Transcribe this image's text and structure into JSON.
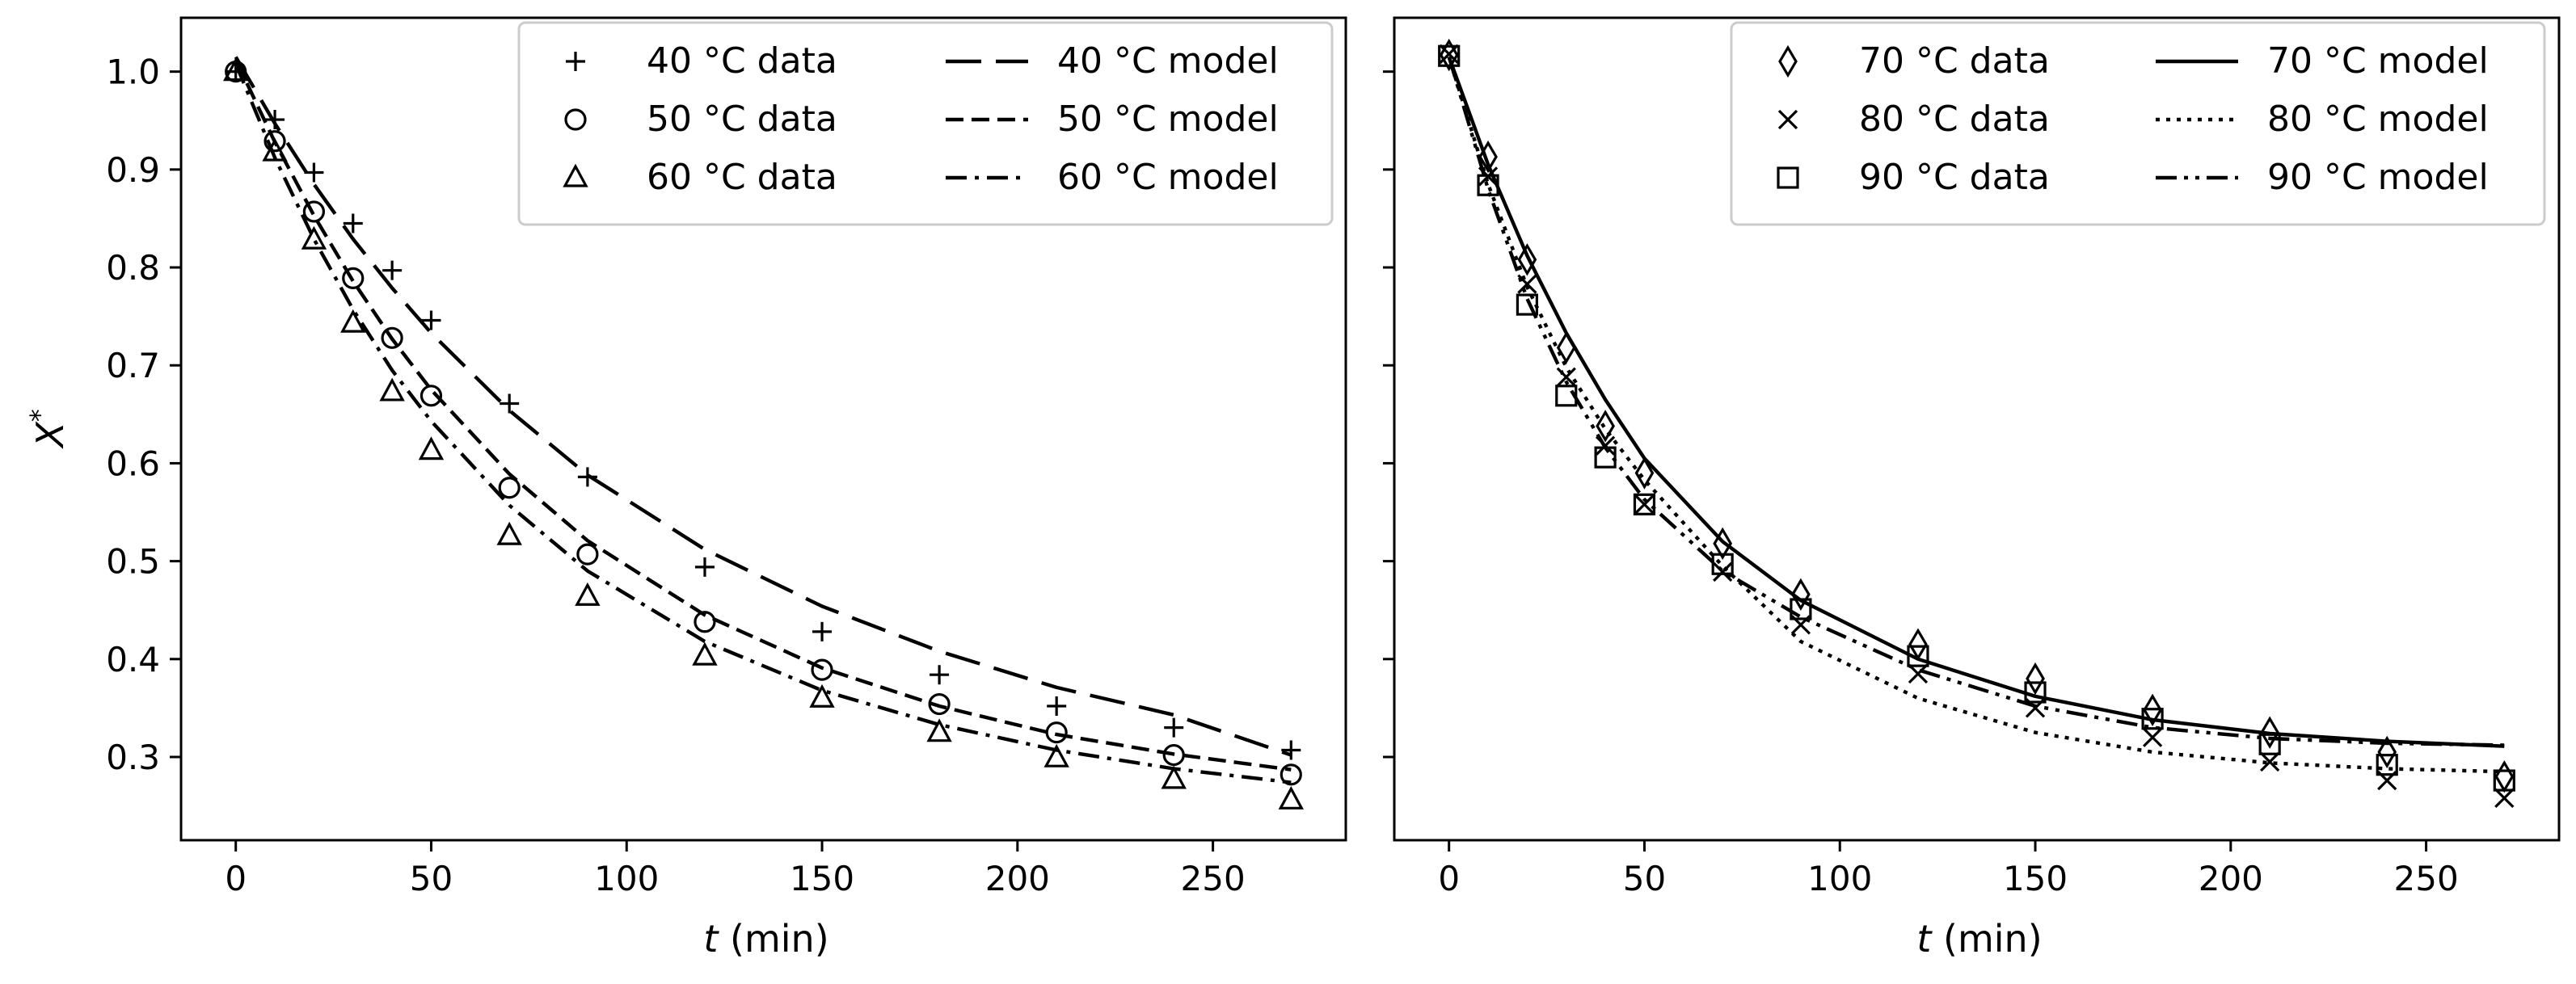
{
  "chart_data": [
    {
      "type": "scatter",
      "x": [
        0,
        10,
        20,
        30,
        40,
        50,
        70,
        90,
        120,
        150,
        180,
        210,
        240,
        270
      ],
      "xlabel_italic": "t",
      "xlabel_rest": " (min)",
      "ylabel": "X*",
      "xlim": [
        -14,
        284
      ],
      "ylim": [
        0.215,
        1.055
      ],
      "xticks": [
        0,
        50,
        100,
        150,
        200,
        250
      ],
      "yticks": [
        1.0,
        0.9,
        0.8,
        0.7,
        0.6,
        0.5,
        0.4,
        0.3
      ],
      "ytick_labels": [
        "1.0",
        "0.9",
        "0.8",
        "0.7",
        "0.6",
        "0.5",
        "0.4",
        "0.3"
      ],
      "legend_position": "top-right",
      "series": [
        {
          "name": "40 °C data",
          "marker": "plus",
          "values": [
            1.0,
            0.951,
            0.897,
            0.845,
            0.797,
            0.746,
            0.661,
            0.586,
            0.494,
            0.428,
            0.384,
            0.352,
            0.33,
            0.307
          ]
        },
        {
          "name": "50 °C data",
          "marker": "circle",
          "values": [
            1.0,
            0.929,
            0.857,
            0.789,
            0.728,
            0.669,
            0.575,
            0.507,
            0.438,
            0.389,
            0.354,
            0.325,
            0.302,
            0.282
          ]
        },
        {
          "name": "60 °C data",
          "marker": "triangle",
          "values": [
            1.0,
            0.918,
            0.828,
            0.743,
            0.673,
            0.613,
            0.526,
            0.464,
            0.403,
            0.36,
            0.325,
            0.299,
            0.277,
            0.256
          ]
        }
      ],
      "models": [
        {
          "name": "40 °C model",
          "dash": "long-dash",
          "x": [
            0,
            10,
            20,
            30,
            40,
            50,
            70,
            90,
            120,
            150,
            180,
            210,
            240,
            270
          ],
          "values": [
            1.015,
            0.947,
            0.885,
            0.829,
            0.779,
            0.733,
            0.654,
            0.588,
            0.512,
            0.454,
            0.408,
            0.371,
            0.343,
            0.302
          ]
        },
        {
          "name": "50 °C model",
          "dash": "dash",
          "x": [
            0,
            10,
            20,
            30,
            40,
            50,
            70,
            90,
            120,
            150,
            180,
            210,
            240,
            270
          ],
          "values": [
            1.012,
            0.928,
            0.853,
            0.786,
            0.727,
            0.675,
            0.589,
            0.521,
            0.445,
            0.391,
            0.352,
            0.323,
            0.303,
            0.287
          ]
        },
        {
          "name": "60 °C model",
          "dash": "dash-dot",
          "x": [
            0,
            10,
            20,
            30,
            40,
            50,
            70,
            90,
            120,
            150,
            180,
            210,
            240,
            270
          ],
          "values": [
            1.008,
            0.912,
            0.829,
            0.757,
            0.695,
            0.643,
            0.557,
            0.49,
            0.418,
            0.368,
            0.333,
            0.307,
            0.288,
            0.274
          ]
        }
      ]
    },
    {
      "type": "scatter",
      "x": [
        0,
        10,
        20,
        30,
        40,
        50,
        70,
        90,
        120,
        150,
        180,
        210,
        240,
        270
      ],
      "xlabel_italic": "t",
      "xlabel_rest": " (min)",
      "ylabel": "",
      "xlim": [
        -14,
        284
      ],
      "ylim": [
        0.215,
        1.055
      ],
      "xticks": [
        0,
        50,
        100,
        150,
        200,
        250
      ],
      "legend_position": "top-right",
      "series": [
        {
          "name": "70 °C data",
          "marker": "diamond",
          "values": [
            1.017,
            0.913,
            0.808,
            0.718,
            0.638,
            0.59,
            0.518,
            0.466,
            0.415,
            0.38,
            0.348,
            0.325,
            0.305,
            0.28
          ]
        },
        {
          "name": "80 °C data",
          "marker": "cross",
          "values": [
            1.018,
            0.893,
            0.783,
            0.688,
            0.618,
            0.558,
            0.489,
            0.435,
            0.385,
            0.35,
            0.32,
            0.295,
            0.276,
            0.258
          ]
        },
        {
          "name": "90 °C data",
          "marker": "square",
          "values": [
            1.016,
            0.884,
            0.762,
            0.669,
            0.606,
            0.558,
            0.497,
            0.451,
            0.403,
            0.366,
            0.339,
            0.313,
            0.292,
            0.276
          ]
        }
      ],
      "models": [
        {
          "name": "70 °C model",
          "dash": "solid",
          "x": [
            0,
            10,
            20,
            30,
            40,
            50,
            70,
            90,
            120,
            150,
            180,
            210,
            240,
            270
          ],
          "values": [
            1.015,
            0.905,
            0.812,
            0.733,
            0.665,
            0.605,
            0.52,
            0.46,
            0.4,
            0.362,
            0.338,
            0.324,
            0.316,
            0.311
          ]
        },
        {
          "name": "80 °C model",
          "dash": "dot",
          "x": [
            0,
            10,
            20,
            30,
            40,
            50,
            70,
            90,
            120,
            150,
            180,
            210,
            240,
            270
          ],
          "values": [
            1.015,
            0.885,
            0.78,
            0.698,
            0.635,
            0.583,
            0.495,
            0.418,
            0.36,
            0.325,
            0.305,
            0.294,
            0.288,
            0.285
          ]
        },
        {
          "name": "90 °C model",
          "dash": "dash-dot-dot",
          "x": [
            0,
            10,
            20,
            30,
            40,
            50,
            70,
            90,
            120,
            150,
            180,
            210,
            240,
            270
          ],
          "values": [
            1.015,
            0.88,
            0.768,
            0.683,
            0.616,
            0.563,
            0.49,
            0.443,
            0.389,
            0.352,
            0.33,
            0.319,
            0.314,
            0.312
          ]
        }
      ]
    }
  ]
}
